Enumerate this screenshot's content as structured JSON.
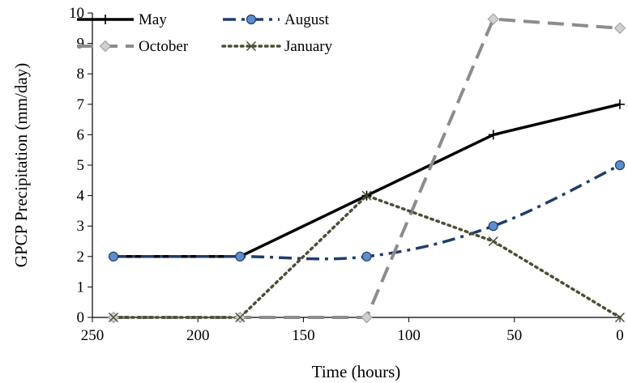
{
  "chart_data": {
    "type": "line",
    "title": "",
    "xlabel": "Time (hours)",
    "ylabel": "GPCP Precipitation (mm/day)",
    "xlim": [
      250,
      0
    ],
    "ylim": [
      0,
      10
    ],
    "x_reversed": true,
    "xticks": [
      250,
      200,
      150,
      100,
      50,
      0
    ],
    "yticks": [
      0,
      1,
      2,
      3,
      4,
      5,
      6,
      7,
      8,
      9,
      10
    ],
    "grid": false,
    "legend_position": "top-left",
    "series": [
      {
        "name": "May",
        "x": [
          240,
          180,
          120,
          60,
          0
        ],
        "values": [
          2,
          2,
          4,
          6,
          7
        ],
        "color": "#000000",
        "line_style": "solid",
        "marker": "plus",
        "smooth": false
      },
      {
        "name": "August",
        "x": [
          240,
          180,
          120,
          60,
          0
        ],
        "values": [
          2,
          2,
          2,
          3,
          5
        ],
        "color": "#1f3d6b",
        "line_style": "dash-dot",
        "marker": "circle",
        "marker_fill": "#5b8ed0",
        "smooth": true
      },
      {
        "name": "October",
        "x": [
          240,
          180,
          120,
          60,
          0
        ],
        "values": [
          0,
          0,
          0,
          9.8,
          9.5
        ],
        "color": "#8c8c8c",
        "line_style": "long-dash",
        "marker": "diamond",
        "marker_fill": "#d0d0d0",
        "smooth": false
      },
      {
        "name": "January",
        "x": [
          240,
          180,
          120,
          60,
          0
        ],
        "values": [
          0,
          0,
          4,
          2.5,
          0
        ],
        "color": "#4d4d33",
        "line_style": "dotted",
        "marker": "x",
        "smooth": false
      }
    ]
  }
}
